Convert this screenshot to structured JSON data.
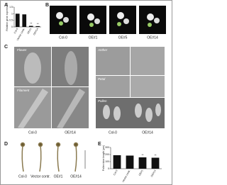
{
  "panel_labels": [
    "A",
    "B",
    "C",
    "D",
    "E"
  ],
  "b_labels": [
    "Col-0",
    "OE#1",
    "OE#5",
    "OE#14"
  ],
  "c_tissues": [
    "Flower",
    "Filament",
    "Anther",
    "Petal",
    "Pollen"
  ],
  "c_genotypes": [
    "Col-0",
    "OE#14"
  ],
  "d_labels": [
    "Col-0",
    "Vector contr.",
    "OE#1",
    "OE#14"
  ],
  "chart_data": [
    {
      "type": "bar",
      "ylabel": "Relative gene expression",
      "categories": [
        "Col-0",
        "Vector contr.",
        "OE#1",
        "OE#14"
      ],
      "values": [
        1,
        0.95,
        0.08,
        0.06
      ],
      "color": "#111111",
      "ylim": [
        0,
        1.5
      ],
      "yticks": [
        0,
        0.5,
        1,
        1.5
      ],
      "annotations": [
        "**",
        "**"
      ]
    },
    {
      "type": "bar",
      "ylabel": "Pollen tube length (μm)",
      "categories": [
        "Col-0",
        "Vector contr.",
        "OE#1",
        "OE#14"
      ],
      "values": [
        190,
        185,
        160,
        155
      ],
      "color": "#111111",
      "ylim": [
        0,
        300
      ],
      "yticks": [
        0,
        100,
        200,
        300
      ],
      "annotations": [
        "**",
        "**"
      ]
    }
  ]
}
